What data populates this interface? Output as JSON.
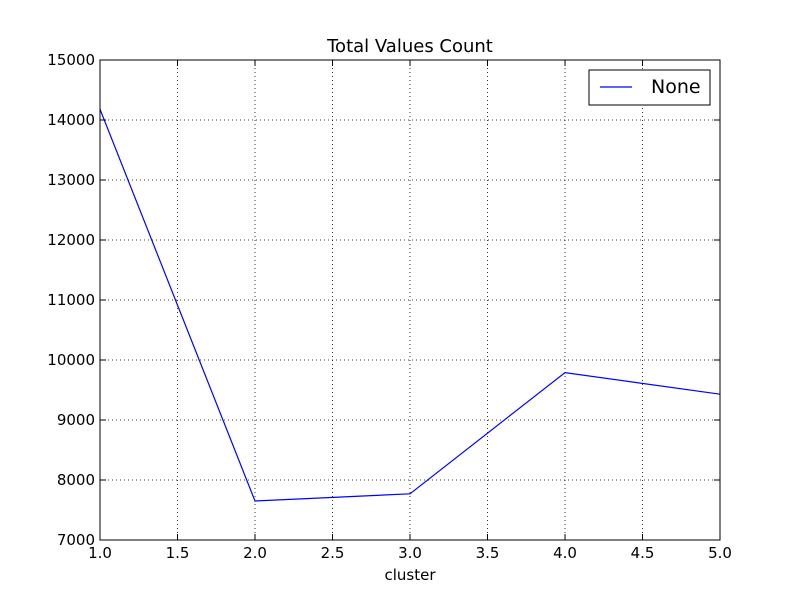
{
  "chart_data": {
    "type": "line",
    "title": "Total Values Count",
    "xlabel": "cluster",
    "ylabel": "",
    "xlim": [
      1.0,
      5.0
    ],
    "ylim": [
      7000,
      15000
    ],
    "x_ticks": [
      "1.0",
      "1.5",
      "2.0",
      "2.5",
      "3.0",
      "3.5",
      "4.0",
      "4.5",
      "5.0"
    ],
    "y_ticks": [
      "7000",
      "8000",
      "9000",
      "10000",
      "11000",
      "12000",
      "13000",
      "14000",
      "15000"
    ],
    "grid": true,
    "legend_position": "top-right",
    "series": [
      {
        "name": "None",
        "color": "#0000ff",
        "x": [
          1,
          2,
          3,
          4,
          5
        ],
        "y": [
          14180,
          7650,
          7770,
          9790,
          9430
        ]
      }
    ]
  }
}
